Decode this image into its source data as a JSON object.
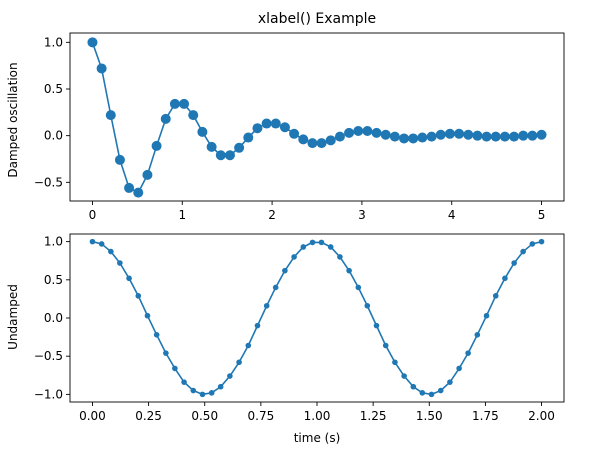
{
  "chart_data": [
    {
      "type": "line",
      "title": "xlabel() Example",
      "xlabel": "",
      "ylabel": "Damped oscillation",
      "xlim": [
        -0.25,
        5.25
      ],
      "ylim": [
        -0.7,
        1.1
      ],
      "xticks": [
        0,
        1,
        2,
        3,
        4,
        5
      ],
      "xtick_labels": [
        "0",
        "1",
        "2",
        "3",
        "4",
        "5"
      ],
      "yticks": [
        -0.5,
        0.0,
        0.5,
        1.0
      ],
      "ytick_labels": [
        "−0.5",
        "0.0",
        "0.5",
        "1.0"
      ],
      "marker": "circle",
      "color": "#1f77b4",
      "series": [
        {
          "x": [
            0,
            0.102,
            0.204,
            0.306,
            0.408,
            0.51,
            0.612,
            0.714,
            0.816,
            0.918,
            1.02,
            1.122,
            1.224,
            1.327,
            1.429,
            1.531,
            1.633,
            1.735,
            1.837,
            1.939,
            2.041,
            2.143,
            2.245,
            2.347,
            2.449,
            2.551,
            2.653,
            2.755,
            2.857,
            2.959,
            3.061,
            3.163,
            3.265,
            3.367,
            3.469,
            3.571,
            3.673,
            3.776,
            3.878,
            3.98,
            4.082,
            4.184,
            4.286,
            4.388,
            4.49,
            4.592,
            4.694,
            4.796,
            4.898,
            5.0
          ],
          "y": [
            1.0,
            0.72,
            0.22,
            -0.26,
            -0.56,
            -0.61,
            -0.42,
            -0.11,
            0.18,
            0.34,
            0.34,
            0.22,
            0.04,
            -0.12,
            -0.21,
            -0.21,
            -0.13,
            -0.02,
            0.08,
            0.13,
            0.13,
            0.09,
            0.02,
            -0.04,
            -0.08,
            -0.08,
            -0.05,
            -0.01,
            0.03,
            0.05,
            0.05,
            0.03,
            0.01,
            -0.01,
            -0.03,
            -0.03,
            -0.02,
            -0.01,
            0.01,
            0.02,
            0.02,
            0.01,
            0.0,
            -0.01,
            -0.01,
            -0.01,
            -0.01,
            0.0,
            0.0,
            0.01
          ]
        }
      ]
    },
    {
      "type": "line",
      "title": "",
      "xlabel": "time (s)",
      "ylabel": "Undamped",
      "xlim": [
        -0.1,
        2.1
      ],
      "ylim": [
        -1.1,
        1.1
      ],
      "xticks": [
        0.0,
        0.25,
        0.5,
        0.75,
        1.0,
        1.25,
        1.5,
        1.75,
        2.0
      ],
      "xtick_labels": [
        "0.00",
        "0.25",
        "0.50",
        "0.75",
        "1.00",
        "1.25",
        "1.50",
        "1.75",
        "2.00"
      ],
      "yticks": [
        -1.0,
        -0.5,
        0.0,
        0.5,
        1.0
      ],
      "ytick_labels": [
        "−1.0",
        "−0.5",
        "0.0",
        "0.5",
        "1.0"
      ],
      "marker": "small-dot",
      "color": "#1f77b4",
      "series": [
        {
          "x": [
            0.0,
            0.041,
            0.082,
            0.122,
            0.163,
            0.204,
            0.245,
            0.286,
            0.327,
            0.367,
            0.408,
            0.449,
            0.49,
            0.531,
            0.571,
            0.612,
            0.653,
            0.694,
            0.735,
            0.776,
            0.816,
            0.857,
            0.898,
            0.939,
            0.98,
            1.02,
            1.061,
            1.102,
            1.143,
            1.184,
            1.224,
            1.265,
            1.306,
            1.347,
            1.388,
            1.429,
            1.469,
            1.51,
            1.551,
            1.592,
            1.633,
            1.673,
            1.714,
            1.755,
            1.796,
            1.837,
            1.878,
            1.918,
            1.959,
            2.0
          ],
          "y": [
            1.0,
            0.97,
            0.87,
            0.72,
            0.52,
            0.29,
            0.03,
            -0.22,
            -0.46,
            -0.66,
            -0.84,
            -0.95,
            -1.0,
            -0.98,
            -0.9,
            -0.76,
            -0.58,
            -0.36,
            -0.1,
            0.16,
            0.4,
            0.62,
            0.8,
            0.93,
            0.99,
            0.99,
            0.93,
            0.8,
            0.62,
            0.4,
            0.16,
            -0.1,
            -0.36,
            -0.58,
            -0.76,
            -0.9,
            -0.98,
            -1.0,
            -0.95,
            -0.84,
            -0.66,
            -0.46,
            -0.22,
            0.03,
            0.29,
            0.52,
            0.72,
            0.87,
            0.97,
            1.0
          ]
        }
      ]
    }
  ]
}
